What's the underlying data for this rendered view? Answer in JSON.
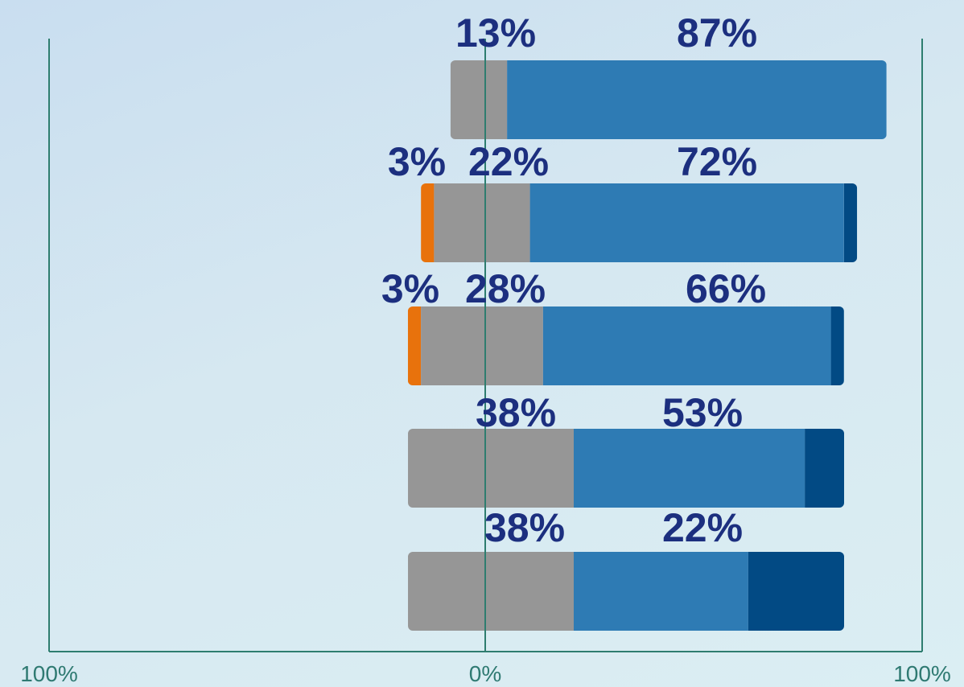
{
  "chart_data": {
    "type": "bar",
    "orientation": "horizontal",
    "stacked": "diverging",
    "x_tick_labels": [
      "100%",
      "0%",
      "100%"
    ],
    "xlim": [
      -100,
      100
    ],
    "grid": false,
    "legend": "none",
    "series": [
      {
        "key": "orange",
        "color": "#e8720c",
        "values": [
          0,
          3,
          3,
          0,
          0
        ],
        "side": "negative"
      },
      {
        "key": "gray",
        "color": "#969696",
        "values": [
          13,
          22,
          28,
          38,
          38
        ],
        "side": "center"
      },
      {
        "key": "blue",
        "color": "#2e7bb4",
        "values": [
          87,
          72,
          66,
          53,
          40
        ],
        "side": "positive"
      },
      {
        "key": "navy",
        "color": "#024a84",
        "values": [
          0,
          3,
          3,
          9,
          22
        ],
        "side": "positive"
      }
    ],
    "data_labels": [
      [
        "13%",
        "87%"
      ],
      [
        "3%",
        "22%",
        "72%"
      ],
      [
        "3%",
        "28%",
        "66%"
      ],
      [
        "38%",
        "53%"
      ],
      [
        "38%",
        "22%"
      ]
    ]
  }
}
